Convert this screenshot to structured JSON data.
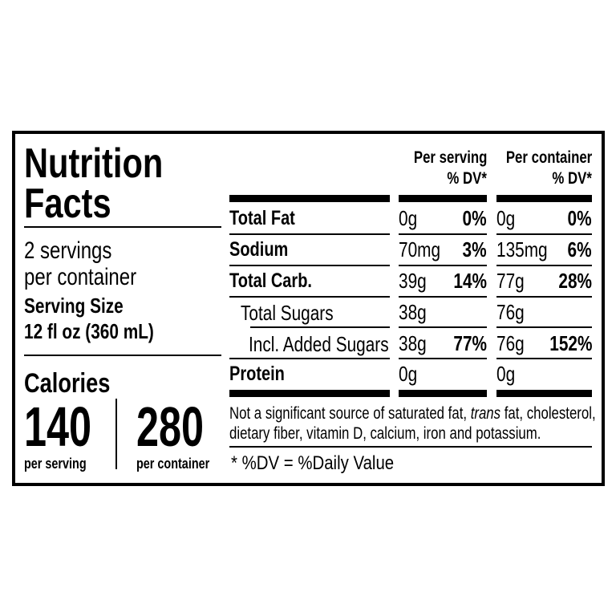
{
  "title_line1": "Nutrition",
  "title_line2": "Facts",
  "servings_line1": "2 servings",
  "servings_line2": "per container",
  "serving_size_label": "Serving Size",
  "serving_size_value": "12 fl oz (360 mL)",
  "calories_label": "Calories",
  "calories_per_serving": "140",
  "calories_per_serving_label": "per serving",
  "calories_per_container": "280",
  "calories_per_container_label": "per container",
  "headers": {
    "per_serving": "Per serving",
    "per_serving_dv": "% DV*",
    "per_container": "Per container",
    "per_container_dv": "% DV*"
  },
  "rows": [
    {
      "name": "Total Fat",
      "serv_amt": "0g",
      "serv_dv": "0%",
      "cont_amt": "0g",
      "cont_dv": "0%"
    },
    {
      "name": "Sodium",
      "serv_amt": "70mg",
      "serv_dv": "3%",
      "cont_amt": "135mg",
      "cont_dv": "6%"
    },
    {
      "name": "Total Carb.",
      "serv_amt": "39g",
      "serv_dv": "14%",
      "cont_amt": "77g",
      "cont_dv": "28%"
    },
    {
      "name": "Total Sugars",
      "serv_amt": "38g",
      "serv_dv": "",
      "cont_amt": "76g",
      "cont_dv": ""
    },
    {
      "name": "Incl. Added Sugars",
      "serv_amt": "38g",
      "serv_dv": "77%",
      "cont_amt": "76g",
      "cont_dv": "152%"
    },
    {
      "name": "Protein",
      "serv_amt": "0g",
      "serv_dv": "",
      "cont_amt": "0g",
      "cont_dv": ""
    }
  ],
  "footnote_part1": "Not a significant source of saturated fat, ",
  "footnote_italic": "trans",
  "footnote_part2": " fat, cholesterol,",
  "footnote_line2": "dietary fiber, vitamin D, calcium, iron and potassium.",
  "dv_note": "* %DV = %Daily Value"
}
